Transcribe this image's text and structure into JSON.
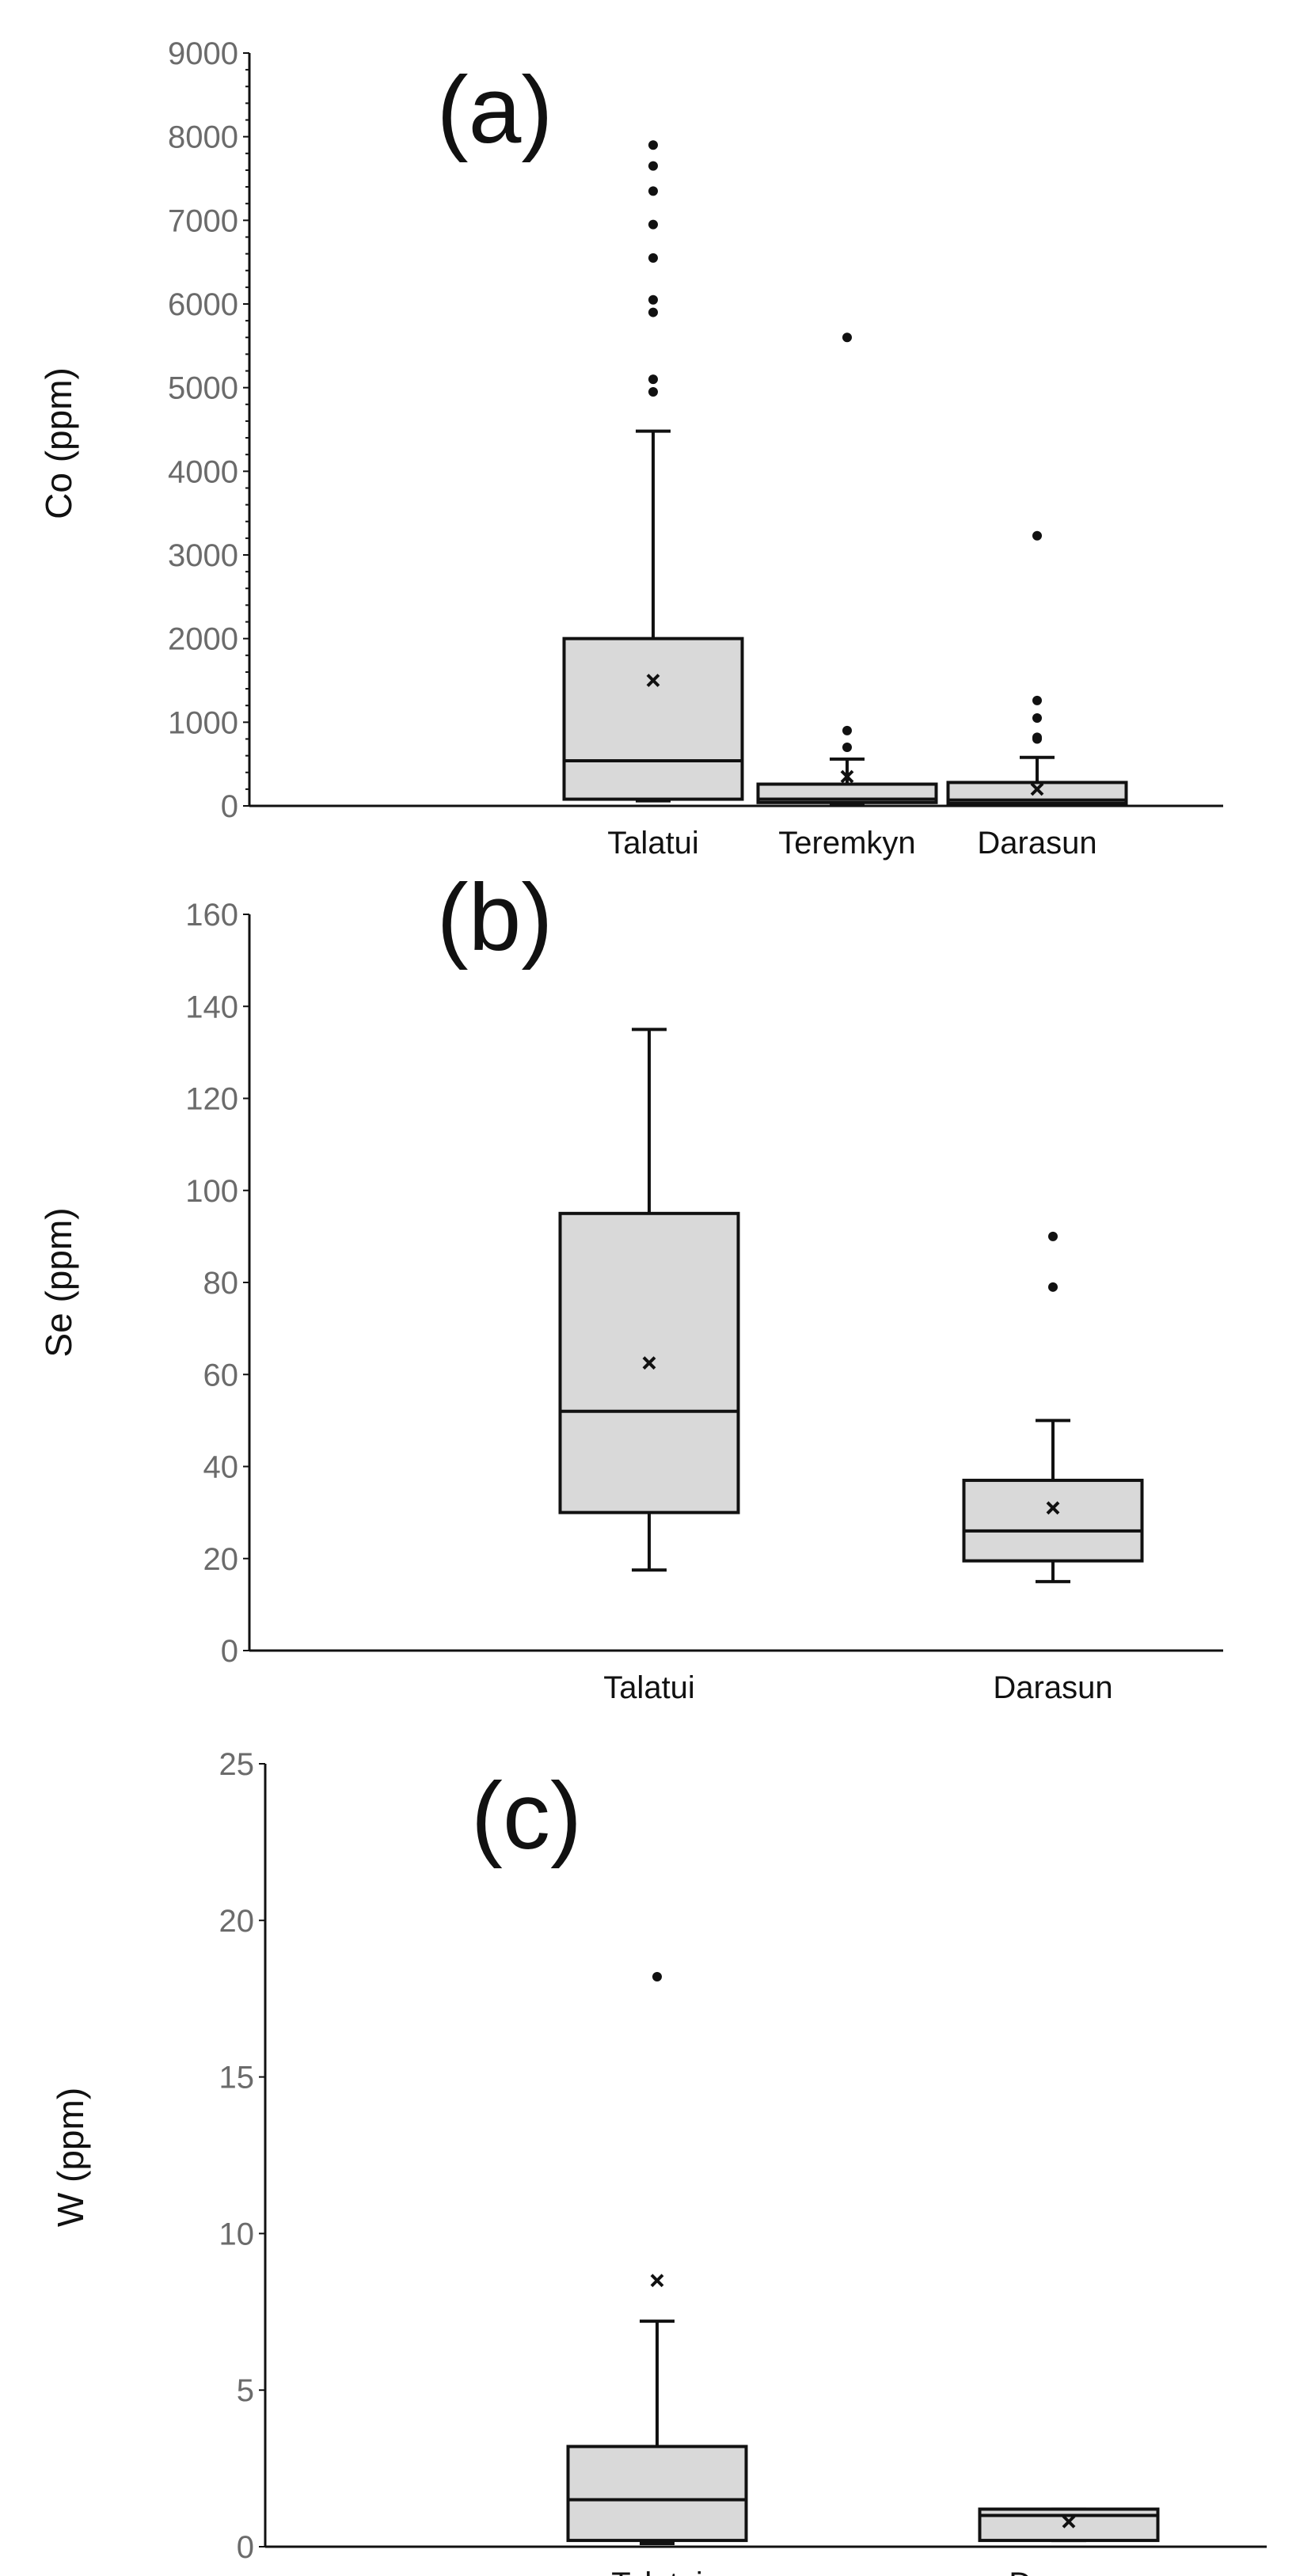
{
  "chart_data": [
    {
      "type": "box",
      "panel_label": "(a)",
      "ylabel": "Co (ppm)",
      "ylim": [
        0,
        9000
      ],
      "yticks": [
        0,
        1000,
        2000,
        3000,
        4000,
        5000,
        6000,
        7000,
        8000,
        9000
      ],
      "categories": [
        "Talatui",
        "Teremkyn",
        "Darasun"
      ],
      "boxes": [
        {
          "category": "Talatui",
          "min": 60,
          "q1": 80,
          "median": 540,
          "q3": 2000,
          "max": 4480,
          "mean": 1500,
          "outliers": [
            4950,
            5100,
            5900,
            6050,
            6550,
            6950,
            7350,
            7650,
            7900
          ]
        },
        {
          "category": "Teremkyn",
          "min": 10,
          "q1": 40,
          "median": 80,
          "q3": 260,
          "max": 560,
          "mean": 350,
          "outliers": [
            700,
            900,
            5600
          ]
        },
        {
          "category": "Darasun",
          "min": 10,
          "q1": 30,
          "median": 70,
          "q3": 280,
          "max": 580,
          "mean": 200,
          "outliers": [
            800,
            820,
            1050,
            1260,
            3230
          ]
        }
      ]
    },
    {
      "type": "box",
      "panel_label": "(b)",
      "ylabel": "Se (ppm)",
      "ylim": [
        0,
        160
      ],
      "yticks": [
        0,
        20,
        40,
        60,
        80,
        100,
        120,
        140,
        160
      ],
      "categories": [
        "Talatui",
        "Darasun"
      ],
      "boxes": [
        {
          "category": "Talatui",
          "min": 17.5,
          "q1": 30,
          "median": 52,
          "q3": 95,
          "max": 135,
          "mean": 62.5,
          "outliers": []
        },
        {
          "category": "Darasun",
          "min": 15,
          "q1": 19.5,
          "median": 26,
          "q3": 37,
          "max": 50,
          "mean": 31,
          "outliers": [
            79,
            90
          ]
        }
      ]
    },
    {
      "type": "box",
      "panel_label": "(c)",
      "ylabel": "W (ppm)",
      "ylim": [
        0,
        25
      ],
      "yticks": [
        0,
        5,
        10,
        15,
        20,
        25
      ],
      "categories": [
        "Talatui",
        "Darasun"
      ],
      "boxes": [
        {
          "category": "Talatui",
          "min": 0.1,
          "q1": 0.2,
          "median": 1.5,
          "q3": 3.2,
          "max": 7.2,
          "mean": 8.5,
          "outliers": [
            18.2
          ]
        },
        {
          "category": "Darasun",
          "min": 0.2,
          "q1": 0.2,
          "median": 1.0,
          "q3": 1.2,
          "max": 1.2,
          "mean": 0.8,
          "outliers": []
        }
      ]
    }
  ]
}
